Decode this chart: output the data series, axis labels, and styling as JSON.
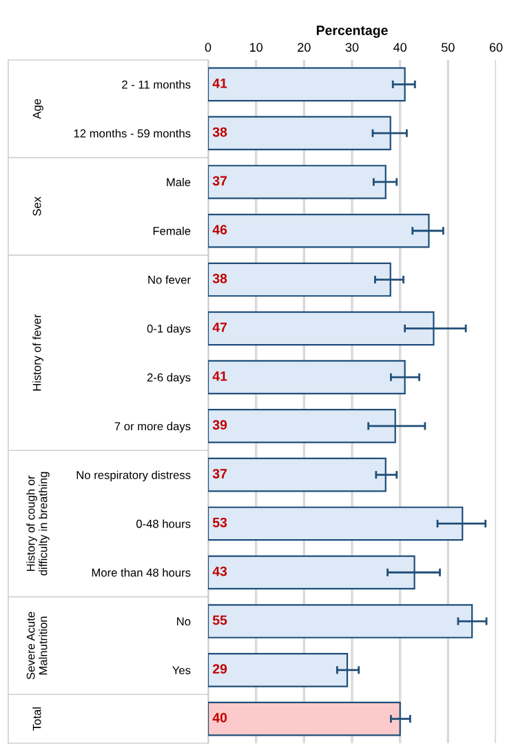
{
  "chart_data": {
    "type": "bar",
    "orientation": "horizontal",
    "xlabel": "Percentage",
    "categories": [
      "2 - 11 months",
      "12 months - 59 months",
      "Male",
      "Female",
      "No fever",
      "0-1 days",
      "2-6 days",
      "7 or more days",
      "No respiratory distress",
      "0-48 hours",
      "More than 48 hours",
      "No",
      "Yes",
      null
    ],
    "values": [
      41,
      38,
      37,
      46,
      38,
      47,
      41,
      39,
      37,
      53,
      43,
      55,
      29,
      40
    ],
    "colors": [
      "#dde9f6",
      "#dde9f6",
      "#dde9f6",
      "#dde9f6",
      "#dde9f6",
      "#dde9f6",
      "#dde9f6",
      "#dde9f6",
      "#dde9f6",
      "#dde9f6",
      "#dde9f6",
      "#dde9f6",
      "#dde9f6",
      "#fccaca"
    ],
    "errors": [
      [
        38.5,
        43.1
      ],
      [
        34.3,
        41.4
      ],
      [
        34.5,
        39.3
      ],
      [
        42.6,
        49.0
      ],
      [
        34.8,
        40.7
      ],
      [
        41.0,
        53.7
      ],
      [
        38.1,
        44.0
      ],
      [
        33.4,
        45.2
      ],
      [
        35.0,
        39.3
      ],
      [
        47.8,
        57.8
      ],
      [
        37.4,
        48.3
      ],
      [
        52.1,
        58.0
      ],
      [
        26.9,
        31.4
      ],
      [
        38.1,
        42.1
      ]
    ],
    "annotations": [
      "Age",
      "Sex",
      "History of fever",
      "History of cough or\ndifficulty in breathing",
      "Severe Acute\nMalnutrition",
      "Total"
    ],
    "xlim": [
      0,
      60
    ],
    "xticks": [
      0,
      10,
      20,
      30,
      40,
      50,
      60
    ],
    "grid": "x",
    "data_labels": true
  }
}
